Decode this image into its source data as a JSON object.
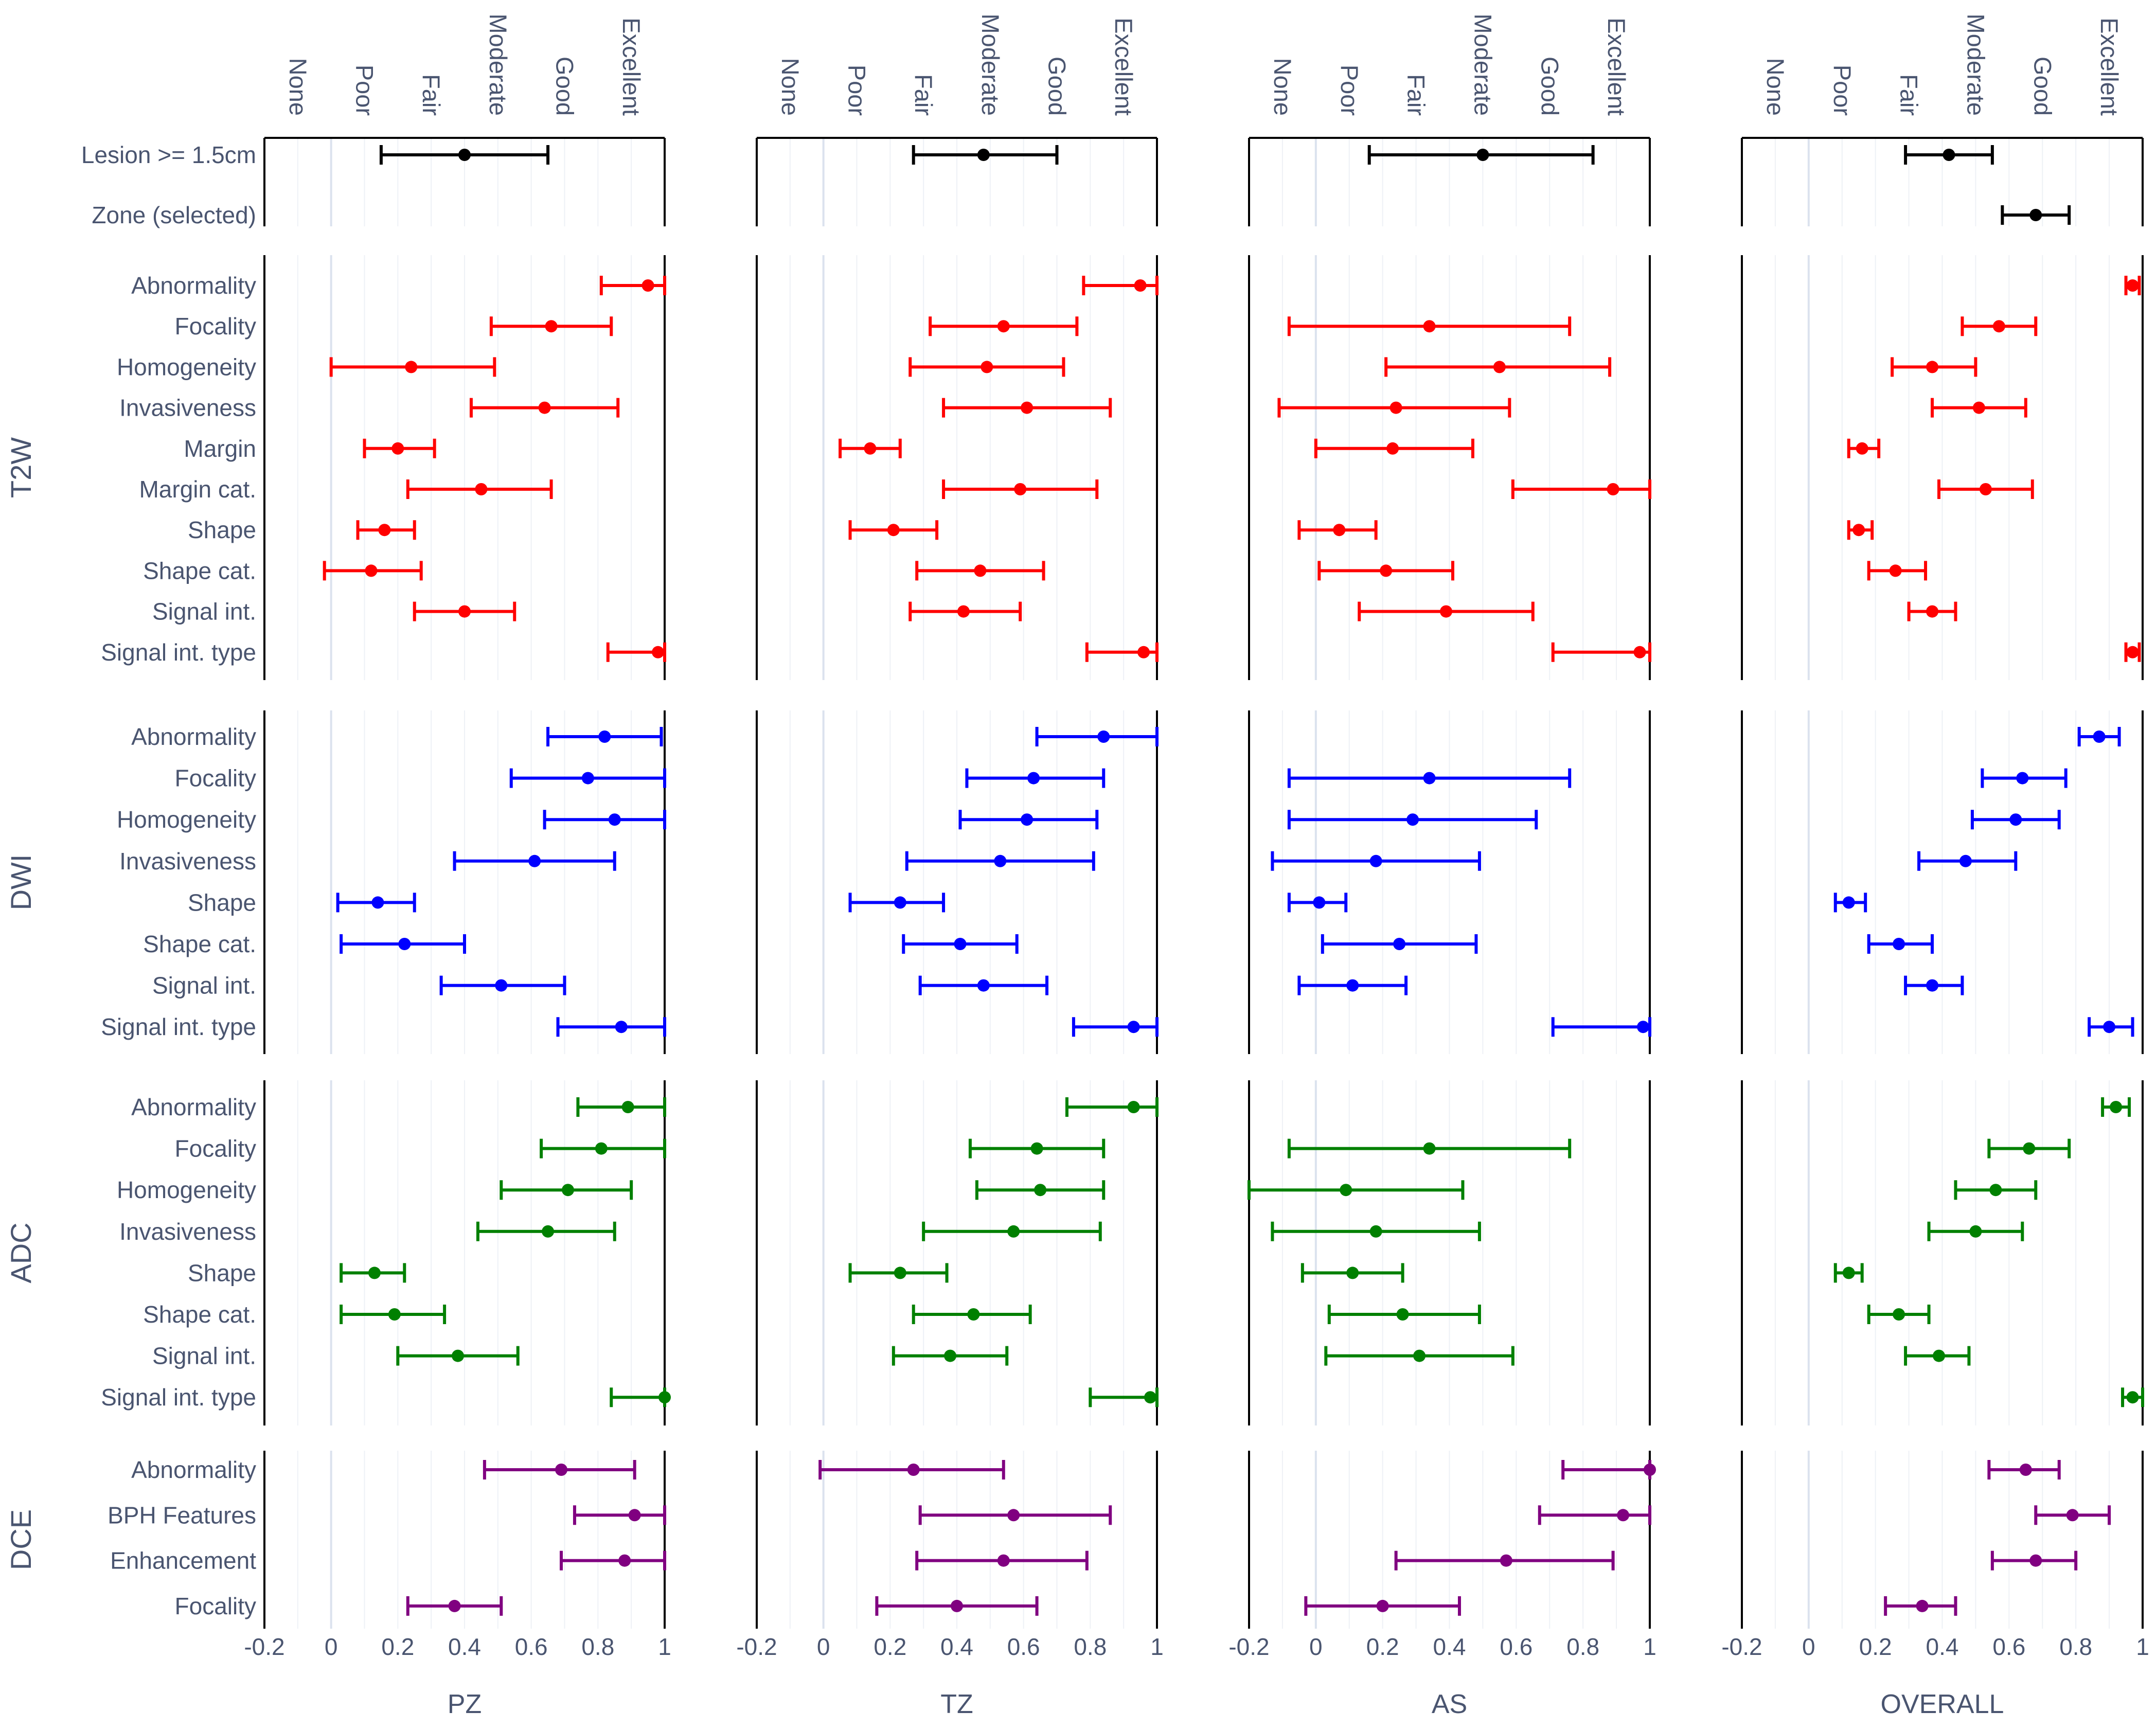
{
  "chart_data": {
    "type": "forest",
    "panels": [
      "PZ",
      "TZ",
      "AS",
      "OVERALL"
    ],
    "x_ticks": [
      "-0.2",
      "0",
      "0.2",
      "0.4",
      "0.6",
      "0.8",
      "1"
    ],
    "xlim": [
      -0.2,
      1.0
    ],
    "agreement_scale": [
      "None",
      "Poor",
      "Fair",
      "Moderate",
      "Good",
      "Excellent"
    ],
    "grid": true,
    "colors": {
      "top": "#000000",
      "T2W": "#ff0000",
      "DWI": "#0000ff",
      "ADC": "#008000",
      "DCE": "#800080"
    },
    "groups": [
      {
        "key": "top",
        "label": "",
        "items": [
          {
            "name": "Lesion >= 1.5cm",
            "values": [
              [
                0.4,
                0.15,
                0.65
              ],
              [
                0.48,
                0.27,
                0.7
              ],
              [
                0.5,
                0.16,
                0.83
              ],
              [
                0.42,
                0.29,
                0.55
              ]
            ]
          },
          {
            "name": "Zone (selected)",
            "values": [
              null,
              null,
              null,
              [
                0.68,
                0.58,
                0.78
              ]
            ]
          }
        ]
      },
      {
        "key": "T2W",
        "label": "T2W",
        "items": [
          {
            "name": "Abnormality",
            "values": [
              [
                0.95,
                0.81,
                1.0
              ],
              [
                0.95,
                0.78,
                1.0
              ],
              null,
              [
                0.97,
                0.95,
                0.99
              ]
            ]
          },
          {
            "name": "Focality",
            "values": [
              [
                0.66,
                0.48,
                0.84
              ],
              [
                0.54,
                0.32,
                0.76
              ],
              [
                0.34,
                -0.08,
                0.76
              ],
              [
                0.57,
                0.46,
                0.68
              ]
            ]
          },
          {
            "name": "Homogeneity",
            "values": [
              [
                0.24,
                0.0,
                0.49
              ],
              [
                0.49,
                0.26,
                0.72
              ],
              [
                0.55,
                0.21,
                0.88
              ],
              [
                0.37,
                0.25,
                0.5
              ]
            ]
          },
          {
            "name": "Invasiveness",
            "values": [
              [
                0.64,
                0.42,
                0.86
              ],
              [
                0.61,
                0.36,
                0.86
              ],
              [
                0.24,
                -0.11,
                0.58
              ],
              [
                0.51,
                0.37,
                0.65
              ]
            ]
          },
          {
            "name": "Margin",
            "values": [
              [
                0.2,
                0.1,
                0.31
              ],
              [
                0.14,
                0.05,
                0.23
              ],
              [
                0.23,
                0.0,
                0.47
              ],
              [
                0.16,
                0.12,
                0.21
              ]
            ]
          },
          {
            "name": "Margin cat.",
            "values": [
              [
                0.45,
                0.23,
                0.66
              ],
              [
                0.59,
                0.36,
                0.82
              ],
              [
                0.89,
                0.59,
                1.0
              ],
              [
                0.53,
                0.39,
                0.67
              ]
            ]
          },
          {
            "name": "Shape",
            "values": [
              [
                0.16,
                0.08,
                0.25
              ],
              [
                0.21,
                0.08,
                0.34
              ],
              [
                0.07,
                -0.05,
                0.18
              ],
              [
                0.15,
                0.12,
                0.19
              ]
            ]
          },
          {
            "name": "Shape cat.",
            "values": [
              [
                0.12,
                -0.02,
                0.27
              ],
              [
                0.47,
                0.28,
                0.66
              ],
              [
                0.21,
                0.01,
                0.41
              ],
              [
                0.26,
                0.18,
                0.35
              ]
            ]
          },
          {
            "name": "Signal int.",
            "values": [
              [
                0.4,
                0.25,
                0.55
              ],
              [
                0.42,
                0.26,
                0.59
              ],
              [
                0.39,
                0.13,
                0.65
              ],
              [
                0.37,
                0.3,
                0.44
              ]
            ]
          },
          {
            "name": "Signal int. type",
            "values": [
              [
                0.98,
                0.83,
                1.0
              ],
              [
                0.96,
                0.79,
                1.0
              ],
              [
                0.97,
                0.71,
                1.0
              ],
              [
                0.97,
                0.95,
                0.99
              ]
            ]
          }
        ]
      },
      {
        "key": "DWI",
        "label": "DWI",
        "items": [
          {
            "name": "Abnormality",
            "values": [
              [
                0.82,
                0.65,
                0.99
              ],
              [
                0.84,
                0.64,
                1.0
              ],
              null,
              [
                0.87,
                0.81,
                0.93
              ]
            ]
          },
          {
            "name": "Focality",
            "values": [
              [
                0.77,
                0.54,
                1.0
              ],
              [
                0.63,
                0.43,
                0.84
              ],
              [
                0.34,
                -0.08,
                0.76
              ],
              [
                0.64,
                0.52,
                0.77
              ]
            ]
          },
          {
            "name": "Homogeneity",
            "values": [
              [
                0.85,
                0.64,
                1.0
              ],
              [
                0.61,
                0.41,
                0.82
              ],
              [
                0.29,
                -0.08,
                0.66
              ],
              [
                0.62,
                0.49,
                0.75
              ]
            ]
          },
          {
            "name": "Invasiveness",
            "values": [
              [
                0.61,
                0.37,
                0.85
              ],
              [
                0.53,
                0.25,
                0.81
              ],
              [
                0.18,
                -0.13,
                0.49
              ],
              [
                0.47,
                0.33,
                0.62
              ]
            ]
          },
          {
            "name": "Shape",
            "values": [
              [
                0.14,
                0.02,
                0.25
              ],
              [
                0.23,
                0.08,
                0.36
              ],
              [
                0.01,
                -0.08,
                0.09
              ],
              [
                0.12,
                0.08,
                0.17
              ]
            ]
          },
          {
            "name": "Shape cat.",
            "values": [
              [
                0.22,
                0.03,
                0.4
              ],
              [
                0.41,
                0.24,
                0.58
              ],
              [
                0.25,
                0.02,
                0.48
              ],
              [
                0.27,
                0.18,
                0.37
              ]
            ]
          },
          {
            "name": "Signal int.",
            "values": [
              [
                0.51,
                0.33,
                0.7
              ],
              [
                0.48,
                0.29,
                0.67
              ],
              [
                0.11,
                -0.05,
                0.27
              ],
              [
                0.37,
                0.29,
                0.46
              ]
            ]
          },
          {
            "name": "Signal int. type",
            "values": [
              [
                0.87,
                0.68,
                1.0
              ],
              [
                0.93,
                0.75,
                1.0
              ],
              [
                0.98,
                0.71,
                1.0
              ],
              [
                0.9,
                0.84,
                0.97
              ]
            ]
          }
        ]
      },
      {
        "key": "ADC",
        "label": "ADC",
        "items": [
          {
            "name": "Abnormality",
            "values": [
              [
                0.89,
                0.74,
                1.0
              ],
              [
                0.93,
                0.73,
                1.0
              ],
              null,
              [
                0.92,
                0.88,
                0.96
              ]
            ]
          },
          {
            "name": "Focality",
            "values": [
              [
                0.81,
                0.63,
                1.0
              ],
              [
                0.64,
                0.44,
                0.84
              ],
              [
                0.34,
                -0.08,
                0.76
              ],
              [
                0.66,
                0.54,
                0.78
              ]
            ]
          },
          {
            "name": "Homogeneity",
            "values": [
              [
                0.71,
                0.51,
                0.9
              ],
              [
                0.65,
                0.46,
                0.84
              ],
              [
                0.09,
                -0.2,
                0.44
              ],
              [
                0.56,
                0.44,
                0.68
              ]
            ]
          },
          {
            "name": "Invasiveness",
            "values": [
              [
                0.65,
                0.44,
                0.85
              ],
              [
                0.57,
                0.3,
                0.83
              ],
              [
                0.18,
                -0.13,
                0.49
              ],
              [
                0.5,
                0.36,
                0.64
              ]
            ]
          },
          {
            "name": "Shape",
            "values": [
              [
                0.13,
                0.03,
                0.22
              ],
              [
                0.23,
                0.08,
                0.37
              ],
              [
                0.11,
                -0.04,
                0.26
              ],
              [
                0.12,
                0.08,
                0.16
              ]
            ]
          },
          {
            "name": "Shape cat.",
            "values": [
              [
                0.19,
                0.03,
                0.34
              ],
              [
                0.45,
                0.27,
                0.62
              ],
              [
                0.26,
                0.04,
                0.49
              ],
              [
                0.27,
                0.18,
                0.36
              ]
            ]
          },
          {
            "name": "Signal int.",
            "values": [
              [
                0.38,
                0.2,
                0.56
              ],
              [
                0.38,
                0.21,
                0.55
              ],
              [
                0.31,
                0.03,
                0.59
              ],
              [
                0.39,
                0.29,
                0.48
              ]
            ]
          },
          {
            "name": "Signal int. type",
            "values": [
              [
                1.0,
                0.84,
                1.0
              ],
              [
                0.98,
                0.8,
                1.0
              ],
              null,
              [
                0.97,
                0.94,
                1.0
              ]
            ]
          }
        ]
      },
      {
        "key": "DCE",
        "label": "DCE",
        "items": [
          {
            "name": "Abnormality",
            "values": [
              [
                0.69,
                0.46,
                0.91
              ],
              [
                0.27,
                -0.01,
                0.54
              ],
              [
                1.0,
                0.74,
                1.0
              ],
              [
                0.65,
                0.54,
                0.75
              ]
            ]
          },
          {
            "name": "BPH Features",
            "values": [
              [
                0.91,
                0.73,
                1.0
              ],
              [
                0.57,
                0.29,
                0.86
              ],
              [
                0.92,
                0.67,
                1.0
              ],
              [
                0.79,
                0.68,
                0.9
              ]
            ]
          },
          {
            "name": "Enhancement",
            "values": [
              [
                0.88,
                0.69,
                1.0
              ],
              [
                0.54,
                0.28,
                0.79
              ],
              [
                0.57,
                0.24,
                0.89
              ],
              [
                0.68,
                0.55,
                0.8
              ]
            ]
          },
          {
            "name": "Focality",
            "values": [
              [
                0.37,
                0.23,
                0.51
              ],
              [
                0.4,
                0.16,
                0.64
              ],
              [
                0.2,
                -0.03,
                0.43
              ],
              [
                0.34,
                0.23,
                0.44
              ]
            ]
          }
        ]
      }
    ]
  }
}
